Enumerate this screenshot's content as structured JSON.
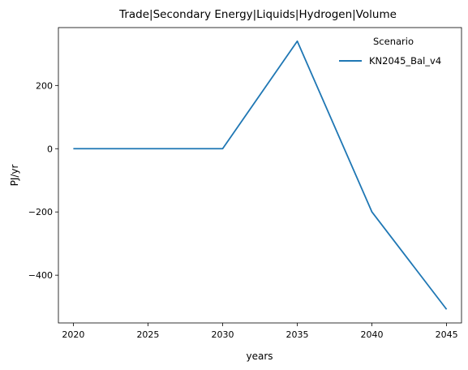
{
  "chart_data": {
    "type": "line",
    "title": "Trade|Secondary Energy|Liquids|Hydrogen|Volume",
    "xlabel": "years",
    "ylabel": "PJ/yr",
    "x": [
      2020,
      2025,
      2030,
      2035,
      2040,
      2045
    ],
    "series": [
      {
        "name": "KN2045_Bal_v4",
        "values": [
          0,
          0,
          0,
          340,
          -200,
          -508
        ]
      }
    ],
    "xticks": [
      2020,
      2025,
      2030,
      2035,
      2040,
      2045
    ],
    "yticks": [
      200,
      0,
      -200,
      -400
    ],
    "ytick_labels": [
      "200",
      "0",
      "−200",
      "−400"
    ],
    "xlim": [
      2019,
      2046
    ],
    "ylim": [
      -551,
      383
    ],
    "grid": false,
    "legend": {
      "title": "Scenario",
      "placement": "top-right"
    },
    "colors": {
      "series": "#1f77b4",
      "axes": "#000000"
    }
  }
}
